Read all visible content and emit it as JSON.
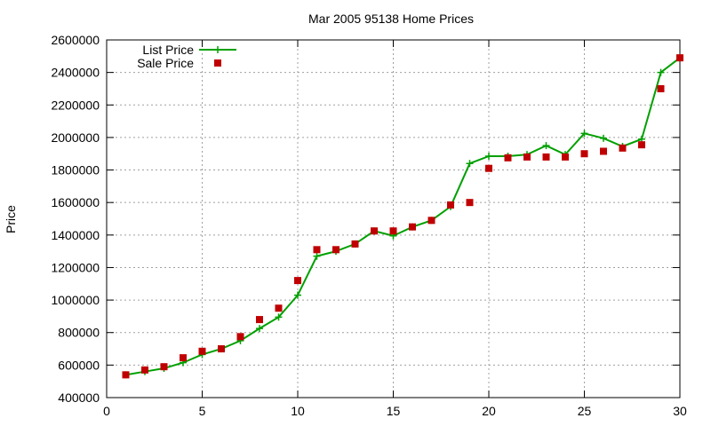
{
  "chart_data": {
    "type": "line",
    "title": "Mar 2005 95138 Home Prices",
    "xlabel": "",
    "ylabel": "Price",
    "xlim": [
      0,
      30
    ],
    "ylim": [
      400000,
      2600000
    ],
    "xticks": [
      0,
      5,
      10,
      15,
      20,
      25,
      30
    ],
    "yticks": [
      400000,
      600000,
      800000,
      1000000,
      1200000,
      1400000,
      1600000,
      1800000,
      2000000,
      2200000,
      2400000,
      2600000
    ],
    "grid": true,
    "legend_position": "top-left",
    "x": [
      1,
      2,
      3,
      4,
      5,
      6,
      7,
      8,
      9,
      10,
      11,
      12,
      13,
      14,
      15,
      16,
      17,
      18,
      19,
      20,
      21,
      22,
      23,
      24,
      25,
      26,
      27,
      28,
      29,
      30
    ],
    "series": [
      {
        "name": "List Price",
        "style": "lines+points",
        "marker": "plus",
        "color": "#00a000",
        "values": [
          540000,
          560000,
          580000,
          615000,
          665000,
          700000,
          750000,
          825000,
          895000,
          1030000,
          1270000,
          1300000,
          1345000,
          1425000,
          1395000,
          1450000,
          1490000,
          1575000,
          1840000,
          1885000,
          1885000,
          1895000,
          1950000,
          1895000,
          2025000,
          1995000,
          1945000,
          1990000,
          2400000,
          2490000
        ]
      },
      {
        "name": "Sale Price",
        "style": "points",
        "marker": "square",
        "color": "#c00000",
        "values": [
          540000,
          570000,
          590000,
          645000,
          685000,
          700000,
          775000,
          880000,
          950000,
          1120000,
          1310000,
          1310000,
          1345000,
          1425000,
          1425000,
          1450000,
          1490000,
          1585000,
          1600000,
          1810000,
          1875000,
          1880000,
          1880000,
          1880000,
          1900000,
          1915000,
          1935000,
          1955000,
          2300000,
          2490000
        ]
      }
    ]
  }
}
